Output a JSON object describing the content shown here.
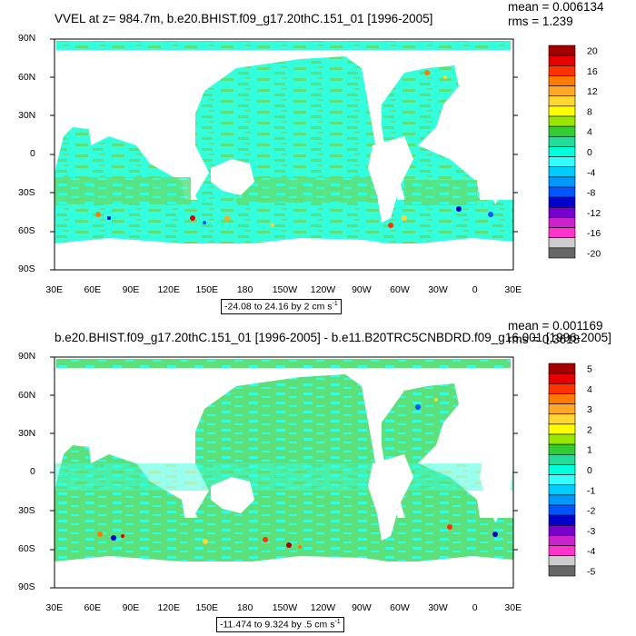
{
  "panels": [
    {
      "title": "VVEL at z= 984.7m, b.e20.BHIST.f09_g17.20thC.151_01 [1996-2005]",
      "mean": "mean = 0.006134",
      "rms": "rms = 1.239",
      "range_text": "-24.08 to 24.16 by 2 cm s",
      "range_exp": "-1",
      "colorbar_labels": [
        "20",
        "16",
        "12",
        "8",
        "4",
        "0",
        "-4",
        "-8",
        "-12",
        "-16",
        "-20"
      ]
    },
    {
      "title": "b.e20.BHIST.f09_g17.20thC.151_01 [1996-2005] - b.e11.B20TRC5CNBDRD.f09_g16.001 [1996-2005]",
      "mean": "mean = 0.001169",
      "rms": "rms = 0.3618",
      "range_text": "-11.474 to 9.324 by .5 cm s",
      "range_exp": "-1",
      "colorbar_labels": [
        "5",
        "4",
        "3",
        "2",
        "1",
        "0",
        "-1",
        "-2",
        "-3",
        "-4",
        "-5"
      ]
    }
  ],
  "lat_labels": [
    "90N",
    "60N",
    "30N",
    "0",
    "30S",
    "60S",
    "90S"
  ],
  "lon_labels": [
    "30E",
    "60E",
    "90E",
    "120E",
    "150E",
    "180",
    "150W",
    "120W",
    "90W",
    "60W",
    "30W",
    "0",
    "30E"
  ],
  "colorbar_colors": [
    "#a50000",
    "#e60000",
    "#ff3300",
    "#ff7a00",
    "#ffa826",
    "#ffd733",
    "#ffff00",
    "#99e600",
    "#33cc33",
    "#22dd99",
    "#00ffdd",
    "#33ffff",
    "#00ccff",
    "#0099ff",
    "#0055ff",
    "#0000cc",
    "#7700cc",
    "#cc22cc",
    "#ff33cc",
    "#cccccc",
    "#666666"
  ],
  "map_colors": {
    "ocean_base": "#33ffdd",
    "ocean_alt": "#5de07a",
    "land": "#ffffff"
  }
}
